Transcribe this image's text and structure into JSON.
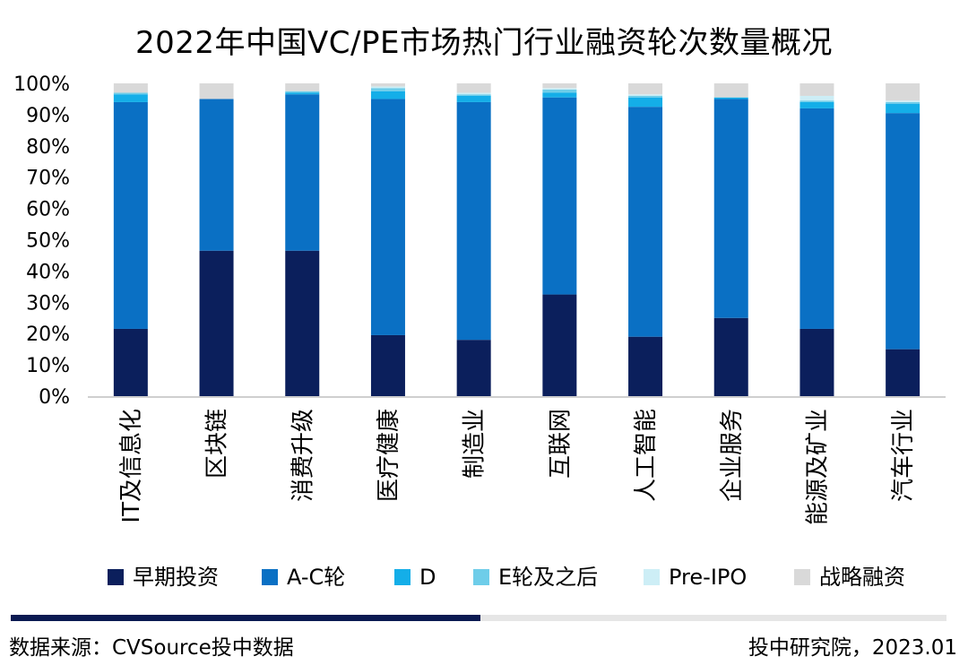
{
  "chart_data": {
    "type": "bar",
    "stacked": true,
    "title": "2022年中国VC/PE市场热门行业融资轮次数量概况",
    "xlabel": "",
    "ylabel": "",
    "ylim": [
      0,
      100
    ],
    "ytick_labels": [
      "0%",
      "10%",
      "20%",
      "30%",
      "40%",
      "50%",
      "60%",
      "70%",
      "80%",
      "90%",
      "100%"
    ],
    "grid": false,
    "legend_position": "bottom",
    "categories": [
      "IT及信息化",
      "区块链",
      "消费升级",
      "医疗健康",
      "制造业",
      "互联网",
      "人工智能",
      "企业服务",
      "能源及矿业",
      "汽车行业"
    ],
    "series": [
      {
        "name": "早期投资",
        "color": "#0b1f5c",
        "values": [
          21.5,
          46.5,
          46.5,
          19.5,
          18,
          32.5,
          19,
          25,
          21.5,
          15
        ]
      },
      {
        "name": "A-C轮",
        "color": "#0a70c4",
        "values": [
          72.5,
          48.5,
          50,
          75.5,
          76,
          63,
          73.5,
          70,
          70.5,
          75.5
        ]
      },
      {
        "name": "D",
        "color": "#14aee8",
        "values": [
          2.5,
          0,
          0.5,
          2.5,
          2,
          1.5,
          3,
          0.5,
          2,
          3
        ]
      },
      {
        "name": "E轮及之后",
        "color": "#6ecde9",
        "values": [
          0.5,
          0,
          0.5,
          1,
          0.5,
          1,
          0.5,
          0,
          0.5,
          0.5
        ]
      },
      {
        "name": "Pre-IPO",
        "color": "#cdeef6",
        "values": [
          0,
          0,
          0,
          0.5,
          0.5,
          0.5,
          0.5,
          0,
          1.5,
          0.5
        ]
      },
      {
        "name": "战略融资",
        "color": "#d9d9d9",
        "values": [
          3,
          5,
          2.5,
          1,
          3,
          1.5,
          3.5,
          4.5,
          4,
          5.5
        ]
      }
    ]
  },
  "footer": {
    "source": "数据来源：CVSource投中数据",
    "credit": "投中研究院，2023.01",
    "dark_color": "#0b1a52",
    "light_color": "#e6e6e6"
  }
}
